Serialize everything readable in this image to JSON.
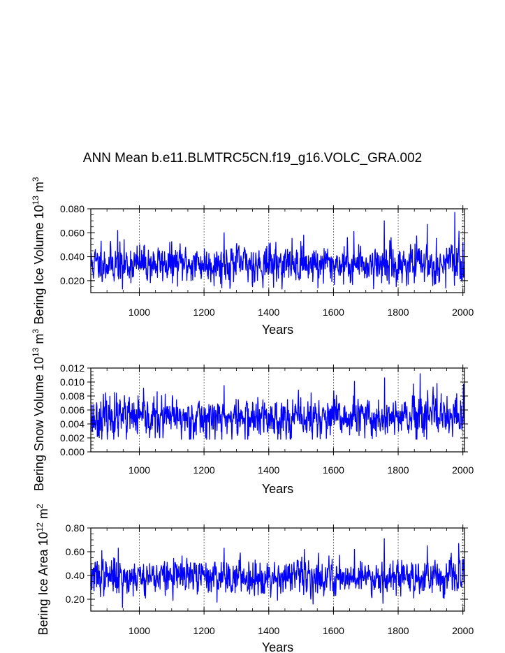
{
  "title": "ANN Mean b.e11.BLMTRC5CN.f19_g16.VOLC_GRA.002",
  "colors": {
    "line": "#0000ff",
    "axis": "#000000",
    "refline": "#555555"
  },
  "chart_data": [
    {
      "type": "line",
      "ylabel": {
        "main": "Bering Ice Volume 10",
        "sup": "13",
        "unit": " m",
        "unitsup": "3"
      },
      "xlabel": "Years",
      "xlim": [
        850,
        2005
      ],
      "ylim": [
        0.01,
        0.08
      ],
      "yticks": [
        0.02,
        0.04,
        0.06,
        0.08
      ],
      "yticklabels": [
        "0.020",
        "0.040",
        "0.060",
        "0.080"
      ],
      "xticks": [
        1000,
        1200,
        1400,
        1600,
        1800,
        2000
      ],
      "xticklabels": [
        "1000",
        "1200",
        "1400",
        "1600",
        "1800",
        "2000"
      ],
      "reflines": [
        1000,
        1200,
        1400,
        1600,
        1800,
        2000
      ],
      "series": {
        "name": "Bering Ice Volume",
        "x_start": 850,
        "x_step": 1,
        "mean": 0.034,
        "spread": 0.0075,
        "min": 0.013,
        "max": 0.077,
        "seed": 11,
        "peaks": [
          [
            882,
            0.053
          ],
          [
            933,
            0.062
          ],
          [
            948,
            0.013
          ],
          [
            1262,
            0.06
          ],
          [
            1508,
            0.058
          ],
          [
            1552,
            0.014
          ],
          [
            1663,
            0.061
          ],
          [
            1757,
            0.07
          ],
          [
            1794,
            0.015
          ],
          [
            1890,
            0.067
          ],
          [
            1975,
            0.077
          ],
          [
            2000,
            0.052
          ]
        ]
      }
    },
    {
      "type": "line",
      "ylabel": {
        "main": "Bering Snow Volume 10",
        "sup": "13",
        "unit": " m",
        "unitsup": "3"
      },
      "xlabel": "Years",
      "xlim": [
        850,
        2005
      ],
      "ylim": [
        0.0,
        0.012
      ],
      "yticks": [
        0.0,
        0.002,
        0.004,
        0.006,
        0.008,
        0.01,
        0.012
      ],
      "yticklabels": [
        "0.000",
        "0.002",
        "0.004",
        "0.006",
        "0.008",
        "0.010",
        "0.012"
      ],
      "xticks": [
        1000,
        1200,
        1400,
        1600,
        1800,
        2000
      ],
      "xticklabels": [
        "1000",
        "1200",
        "1400",
        "1600",
        "1800",
        "2000"
      ],
      "reflines": [
        1000,
        1200,
        1400,
        1600,
        1800,
        2000
      ],
      "series": {
        "name": "Bering Snow Volume",
        "x_start": 850,
        "x_step": 1,
        "mean": 0.0048,
        "spread": 0.0014,
        "min": 0.0018,
        "max": 0.0112,
        "seed": 23,
        "peaks": [
          [
            923,
            0.0085
          ],
          [
            960,
            0.0018
          ],
          [
            1262,
            0.0095
          ],
          [
            1665,
            0.0101
          ],
          [
            1758,
            0.0106
          ],
          [
            1868,
            0.0112
          ],
          [
            1920,
            0.0098
          ],
          [
            2002,
            0.0097
          ]
        ]
      }
    },
    {
      "type": "line",
      "ylabel": {
        "main": "Bering Ice Area 10",
        "sup": "12",
        "unit": " m",
        "unitsup": "2"
      },
      "xlabel": "Years",
      "xlim": [
        850,
        2005
      ],
      "ylim": [
        0.1,
        0.8
      ],
      "yticks": [
        0.2,
        0.4,
        0.6,
        0.8
      ],
      "yticklabels": [
        "0.20",
        "0.40",
        "0.60",
        "0.80"
      ],
      "xticks": [
        1000,
        1200,
        1400,
        1600,
        1800,
        2000
      ],
      "xticklabels": [
        "1000",
        "1200",
        "1400",
        "1600",
        "1800",
        "2000"
      ],
      "reflines": [
        1000,
        1200,
        1400,
        1600,
        1800,
        2000
      ],
      "series": {
        "name": "Bering Ice Area",
        "x_start": 850,
        "x_step": 1,
        "mean": 0.39,
        "spread": 0.07,
        "min": 0.13,
        "max": 0.71,
        "seed": 37,
        "peaks": [
          [
            884,
            0.61
          ],
          [
            935,
            0.63
          ],
          [
            948,
            0.13
          ],
          [
            1262,
            0.63
          ],
          [
            1510,
            0.62
          ],
          [
            1665,
            0.62
          ],
          [
            1757,
            0.71
          ],
          [
            1890,
            0.65
          ],
          [
            1987,
            0.67
          ]
        ]
      }
    }
  ]
}
